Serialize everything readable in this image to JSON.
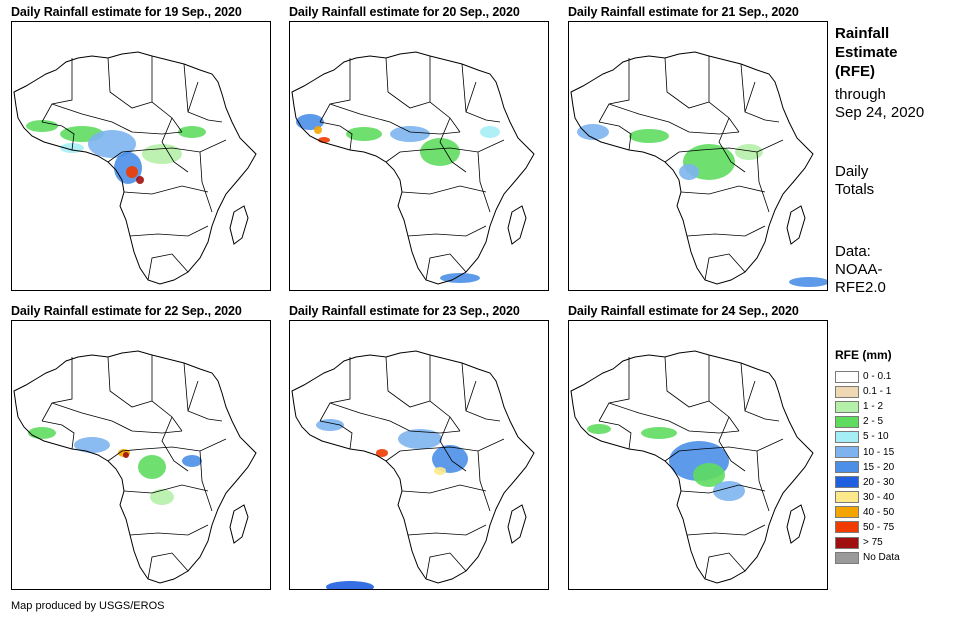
{
  "panels": [
    {
      "title": "Daily Rainfall estimate for 19 Sep., 2020"
    },
    {
      "title": "Daily Rainfall estimate for 20 Sep., 2020"
    },
    {
      "title": "Daily Rainfall estimate for 21 Sep., 2020"
    },
    {
      "title": "Daily Rainfall estimate for 22 Sep., 2020"
    },
    {
      "title": "Daily Rainfall estimate for 23 Sep., 2020"
    },
    {
      "title": "Daily Rainfall estimate for 24 Sep., 2020"
    }
  ],
  "side": {
    "title_line1": "Rainfall",
    "title_line2": "Estimate",
    "title_line3": "(RFE)",
    "through_line1": "through",
    "through_line2": "Sep 24, 2020",
    "totals_line1": "Daily",
    "totals_line2": "Totals",
    "data_line1": "Data:",
    "data_line2": "NOAA-",
    "data_line3": "RFE2.0"
  },
  "legend": {
    "title": "RFE (mm)",
    "items": [
      {
        "label": "0 - 0.1",
        "color": "#ffffff"
      },
      {
        "label": "0.1 - 1",
        "color": "#efd9b4"
      },
      {
        "label": "1 - 2",
        "color": "#b5f0a8"
      },
      {
        "label": "2 - 5",
        "color": "#5fdc5f"
      },
      {
        "label": "5 - 10",
        "color": "#a6eef5"
      },
      {
        "label": "10 - 15",
        "color": "#7db4f0"
      },
      {
        "label": "15 - 20",
        "color": "#4b8fe8"
      },
      {
        "label": "20 - 30",
        "color": "#1f5fe0"
      },
      {
        "label": "30 - 40",
        "color": "#fde98a"
      },
      {
        "label": "40 - 50",
        "color": "#f5a500"
      },
      {
        "label": "50 - 75",
        "color": "#f03c00"
      },
      {
        "label": "> 75",
        "color": "#a01010"
      },
      {
        "label": "No Data",
        "color": "#9a9a9a"
      }
    ]
  },
  "credit": "Map produced by USGS/EROS"
}
